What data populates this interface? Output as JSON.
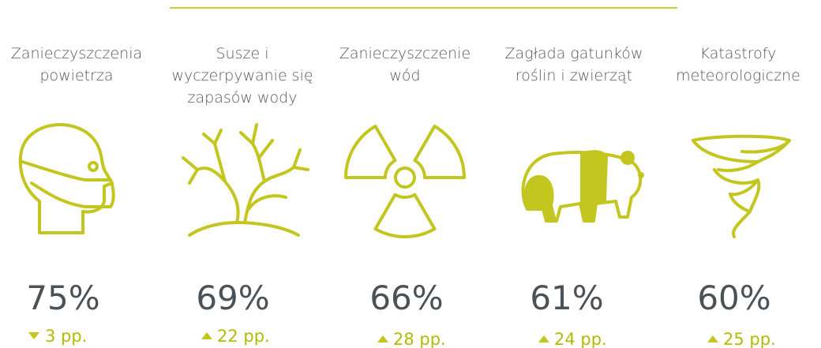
{
  "items": [
    {
      "label": [
        "Zanieczyszczenia",
        "powietrza"
      ],
      "percent": "75%",
      "change": "3 pp."
    },
    {
      "label": [
        "Susze i",
        "wyczerpywanie się",
        "zapasów wody"
      ],
      "percent": "69%",
      "change": "22 pp."
    },
    {
      "label": [
        "Zanieczyszczenie",
        "wód"
      ],
      "percent": "66%",
      "change": "28 pp."
    },
    {
      "label": [
        "Zagłada gatunków",
        "roślin i zwierząt"
      ],
      "percent": "61%",
      "change": "24 pp."
    },
    {
      "label": [
        "Katastrofy",
        "meteorologiczne"
      ],
      "percent": "60%",
      "change": "25 pp."
    }
  ]
}
